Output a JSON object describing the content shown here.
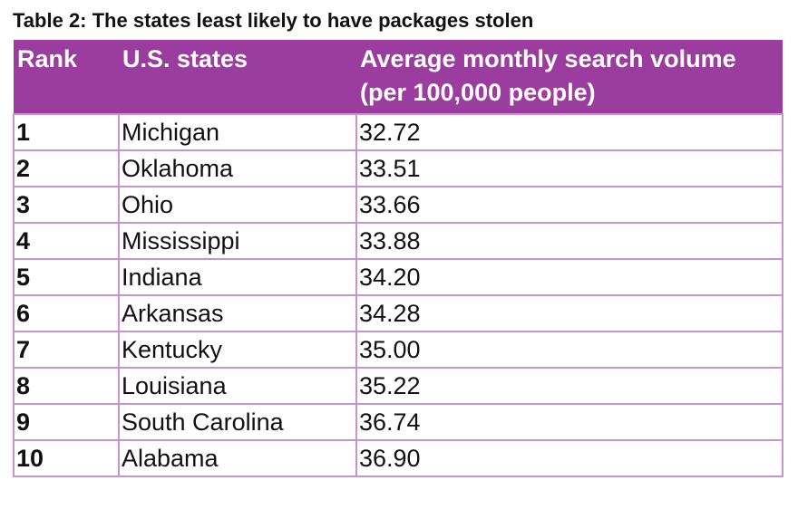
{
  "title": "Table 2: The states least likely to have packages stolen",
  "table": {
    "header": [
      "Rank",
      "U.S. states",
      "Average monthly search volume (per 100,000 people)"
    ],
    "rows": [
      [
        "1",
        "Michigan",
        "32.72"
      ],
      [
        "2",
        "Oklahoma",
        "33.51"
      ],
      [
        "3",
        "Ohio",
        "33.66"
      ],
      [
        "4",
        "Mississippi",
        "33.88"
      ],
      [
        "5",
        "Indiana",
        "34.20"
      ],
      [
        "6",
        "Arkansas",
        "34.28"
      ],
      [
        "7",
        "Kentucky",
        "35.00"
      ],
      [
        "8",
        "Louisiana",
        "35.22"
      ],
      [
        "9",
        "South Carolina",
        "36.74"
      ],
      [
        "10",
        "Alabama",
        "36.90"
      ]
    ]
  }
}
